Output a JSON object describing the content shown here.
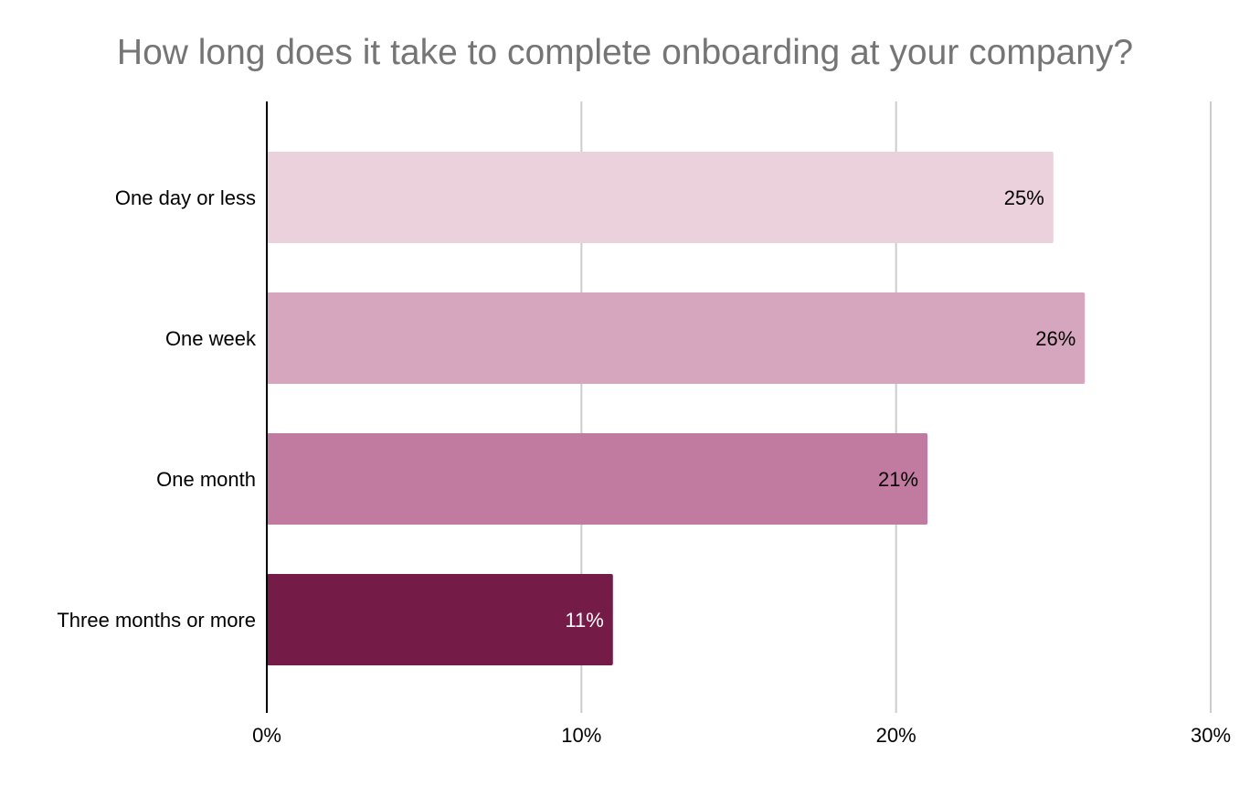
{
  "chart_data": {
    "type": "bar",
    "orientation": "horizontal",
    "title": "How long does it take to complete onboarding at your company?",
    "categories": [
      "One day or less",
      "One week",
      "One month",
      "Three months or more"
    ],
    "values": [
      25,
      26,
      21,
      11
    ],
    "data_labels": [
      "25%",
      "26%",
      "21%",
      "11%"
    ],
    "bar_colors": [
      "#ead1dc",
      "#d5a6bd",
      "#c27ba0",
      "#741b47"
    ],
    "label_colors": [
      "#000000",
      "#000000",
      "#000000",
      "#ffffff"
    ],
    "xlim": [
      0,
      30
    ],
    "x_ticks": [
      0,
      10,
      20,
      30
    ],
    "x_tick_labels": [
      "0%",
      "10%",
      "20%",
      "30%"
    ],
    "xlabel": "",
    "ylabel": "",
    "grid": true,
    "legend": "none"
  }
}
